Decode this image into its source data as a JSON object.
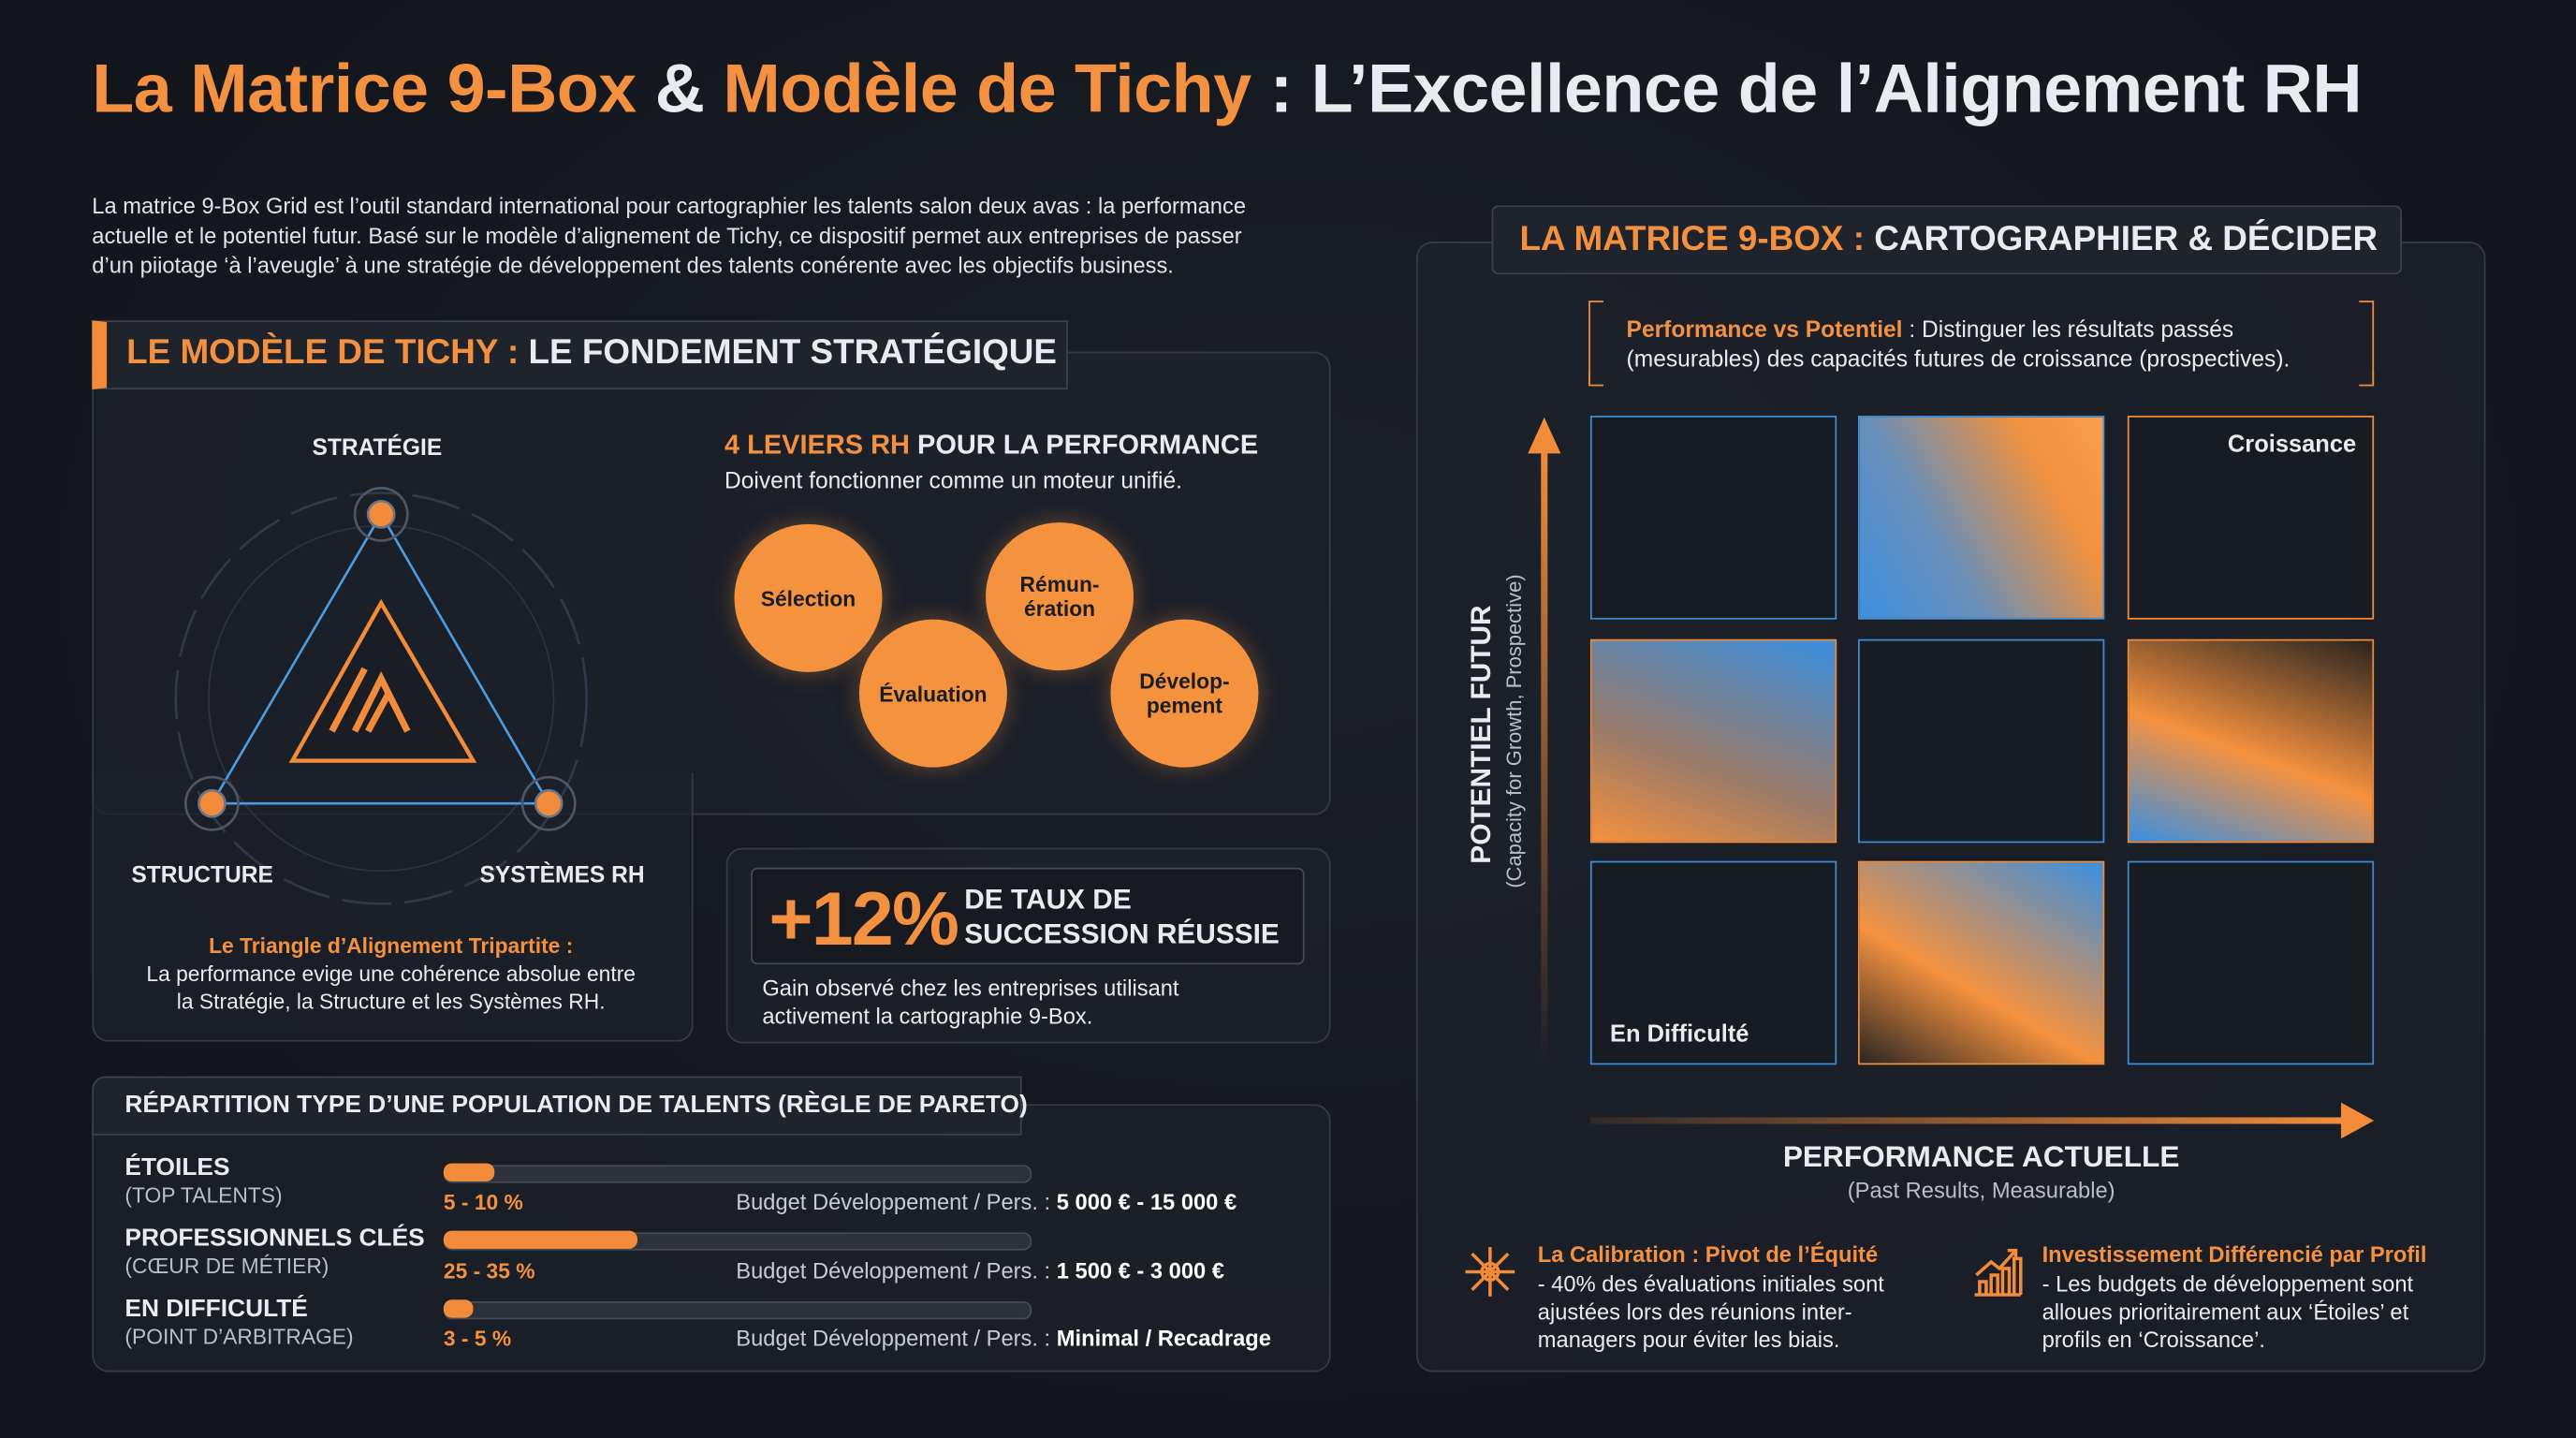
{
  "header": {
    "title_accent_1": "La Matrice 9-Box",
    "title_amp": "&",
    "title_accent_2": "Modèle de Tichy",
    "title_rest": ": L’Excellence de l’Alignement RH"
  },
  "intro": "La matrice 9-Box Grid est l’outil standard international pour cartographier les talents salon deux avas : la performance\nactuelle et le potentiel futur. Basé sur le modèle d’alignement de Tichy, ce dispositif permet aux entreprises de passer\nd’un piiotage ‘à l’aveugle’ à une stratégie de développement des talents conérente avec les objectifs business.",
  "tichy": {
    "heading_accent": "LE MODÈLE DE TICHY :",
    "heading": "LE FONDEMENT STRATÉGIQUE",
    "top": "STRATÉGIE",
    "left": "STRUCTURE",
    "right": "SYSTÈMES RH",
    "caption_title": "Le Triangle d’Alignement Tripartite :",
    "caption": "La performance evige une cohérence absolue entre\nla Stratégie, la Structure et les Systèmes RH."
  },
  "levers": {
    "title_accent": "4 LEVIERS RH",
    "title": "POUR LA PERFORMANCE",
    "subtitle": "Doivent fonctionner comme un moteur unifié.",
    "items": [
      "Sélection",
      "Rémun-\nération",
      "Évaluation",
      "Dévelop-\npement"
    ]
  },
  "stat": {
    "value": "+12%",
    "label": "DE TAUX DE\nSUCCESSION RÉUSSIE",
    "note": "Gain observé chez les entreprises utilisant\nactivement la cartographie 9-Box."
  },
  "pareto": {
    "title": "RÉPARTITION TYPE D’UNE POPULATION DE TALENTS (RÈGLE DE PARETO)",
    "rows": [
      {
        "name": "ÉTOILES",
        "sub": "(TOP TALENTS)",
        "range": "5 - 10 %",
        "budget_label": "Budget Développement / Pers. :",
        "budget": "5 000 € - 15 000 €"
      },
      {
        "name": "PROFESSIONNELS CLÉS",
        "sub": "(CŒUR DE MÉTIER)",
        "range": "25 - 35 %",
        "budget_label": "Budget Développement / Pers. :",
        "budget": "1 500 € - 3 000 €"
      },
      {
        "name": "EN DIFFICULTÉ",
        "sub": "(POINT D’ARBITRAGE)",
        "range": "3 - 5 %",
        "budget_label": "Budget Développement / Pers. :",
        "budget": "Minimal / Recadrage"
      }
    ]
  },
  "matrix": {
    "heading_accent": "LA MATRICE 9-BOX :",
    "heading": "CARTOGRAPHIER & DÉCIDER",
    "note_accent": "Performance vs Potentiel",
    "note": ": Distinguer les résultats passés\n(mesurables) des capacités futures de croissance (prospectives).",
    "cell_top_right": "Croissance",
    "cell_bottom_left": "En Difficulté",
    "y_label": "POTENTIEL FUTUR",
    "y_sub": "(Capacity for Growth, Prospective)",
    "x_label": "PERFORMANCE ACTUELLE",
    "x_sub": "(Past Results, Measurable)",
    "calibration_title": "La Calibration : Pivot de l’Équité",
    "calibration_text": "- 40% des évaluations initiales sont\najustées lors des réunions inter-\nmanagers pour éviter les biais.",
    "invest_title": "Investissement Différencié par Profil",
    "invest_text": "- Les budgets de développement sont\nalloues prioritairement aux ‘Étoiles’ et\nprofils en ‘Croissance’."
  }
}
